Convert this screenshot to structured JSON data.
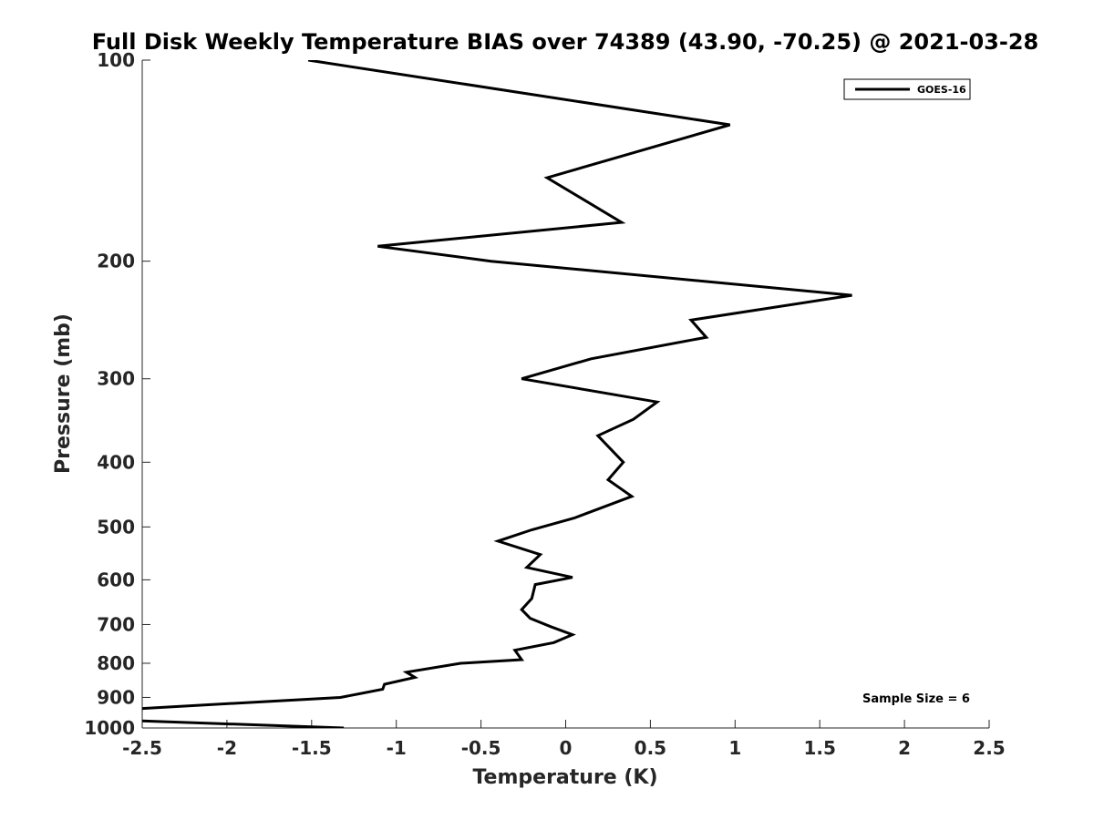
{
  "chart_data": {
    "type": "line",
    "title": "Full Disk Weekly Temperature BIAS over 74389 (43.90, -70.25) @ 2021-03-28",
    "xlabel": "Temperature (K)",
    "ylabel": "Pressure (mb)",
    "xlim": [
      -2.5,
      2.5
    ],
    "ylim": [
      100,
      1000
    ],
    "y_scale": "log",
    "y_reversed": true,
    "x_ticks": [
      "-2.5",
      "-2",
      "-1.5",
      "-1",
      "-0.5",
      "0",
      "0.5",
      "1",
      "1.5",
      "2",
      "2.5"
    ],
    "y_ticks": [
      "100",
      "200",
      "300",
      "400",
      "500",
      "600",
      "700",
      "800",
      "900",
      "1000"
    ],
    "grid": false,
    "legend_position": "top-right",
    "annotation": "Sample Size = 6",
    "series": [
      {
        "name": "GOES-16",
        "color": "#000000",
        "points": [
          [
            -1.52,
            100
          ],
          [
            0.97,
            125
          ],
          [
            -0.11,
            150
          ],
          [
            0.33,
            175
          ],
          [
            -1.11,
            190
          ],
          [
            -0.44,
            200
          ],
          [
            1.69,
            225
          ],
          [
            0.74,
            245
          ],
          [
            0.83,
            260
          ],
          [
            0.15,
            280
          ],
          [
            -0.26,
            300
          ],
          [
            0.54,
            325
          ],
          [
            0.4,
            345
          ],
          [
            0.19,
            365
          ],
          [
            0.34,
            400
          ],
          [
            0.25,
            425
          ],
          [
            0.39,
            450
          ],
          [
            0.05,
            485
          ],
          [
            -0.2,
            505
          ],
          [
            -0.4,
            525
          ],
          [
            -0.15,
            550
          ],
          [
            -0.23,
            575
          ],
          [
            0.04,
            595
          ],
          [
            -0.18,
            610
          ],
          [
            -0.2,
            640
          ],
          [
            -0.26,
            665
          ],
          [
            -0.21,
            685
          ],
          [
            -0.09,
            705
          ],
          [
            0.04,
            725
          ],
          [
            -0.07,
            745
          ],
          [
            -0.3,
            765
          ],
          [
            -0.26,
            790
          ],
          [
            -0.62,
            800
          ],
          [
            -0.94,
            825
          ],
          [
            -0.89,
            840
          ],
          [
            -1.07,
            860
          ],
          [
            -1.08,
            875
          ],
          [
            -1.33,
            900
          ],
          [
            -1.84,
            915
          ],
          [
            -2.5,
            935
          ],
          [
            -2.55,
            975
          ],
          [
            -1.31,
            1000
          ]
        ]
      }
    ]
  }
}
